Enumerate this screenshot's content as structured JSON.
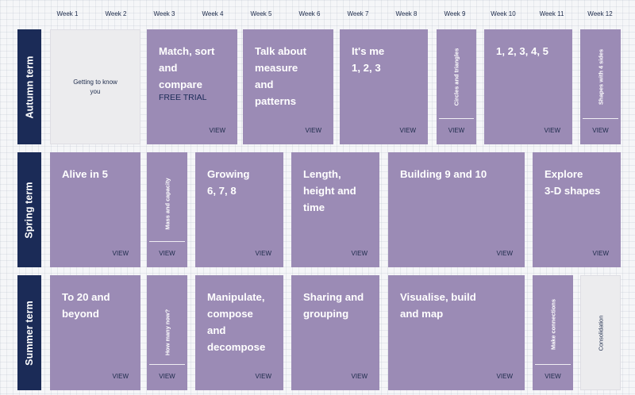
{
  "weeks": [
    "Week 1",
    "Week 2",
    "Week 3",
    "Week 4",
    "Week 5",
    "Week 6",
    "Week 7",
    "Week 8",
    "Week 9",
    "Week 10",
    "Week 11",
    "Week 12"
  ],
  "view_label": "VIEW",
  "terms": {
    "autumn": {
      "label": "Autumn term",
      "getting": "Getting to know\nyou",
      "match": "Match, sort\nand\ncompare",
      "free_trial": "FREE TRIAL",
      "talk": "Talk about\nmeasure\nand\npatterns",
      "itsme": "It's me\n1, 2, 3",
      "circles": "Circles and triangles",
      "count": "1, 2, 3, 4, 5",
      "shapes4": "Shapes with 4 sides"
    },
    "spring": {
      "label": "Spring term",
      "alive": "Alive in 5",
      "mass": "Mass and capacity",
      "growing": "Growing\n6, 7, 8",
      "length": "Length,\nheight and\ntime",
      "building": "Building 9 and 10",
      "explore": "Explore\n3-D shapes"
    },
    "summer": {
      "label": "Summer term",
      "to20": "To 20 and\nbeyond",
      "howmany": "How many now?",
      "manipulate": "Manipulate,\ncompose\nand\ndecompose",
      "sharing": "Sharing and\ngrouping",
      "visualise": "Visualise, build\nand map",
      "connections": "Make connections",
      "consolidation": "Consolidation"
    }
  }
}
